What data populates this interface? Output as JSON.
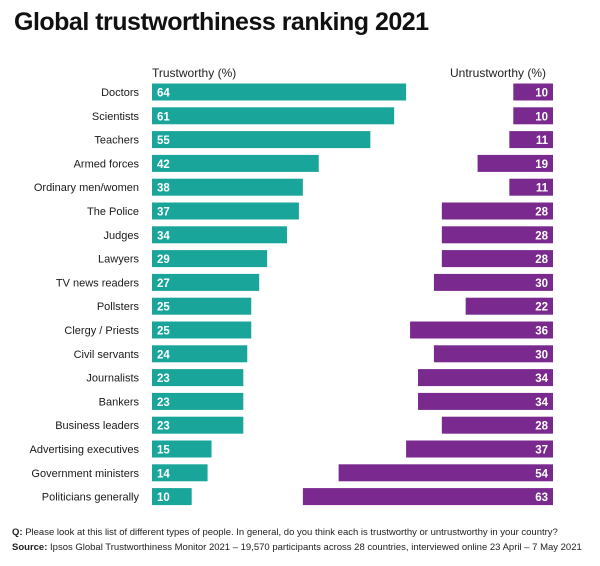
{
  "title": "Global trustworthiness ranking 2021",
  "headers": {
    "left": "Trustworthy (%)",
    "right": "Untrustworthy (%)"
  },
  "colors": {
    "trust": "#1aa59b",
    "untrust": "#7a2a8e"
  },
  "chart_data": {
    "type": "bar",
    "title": "Global trustworthiness ranking 2021",
    "categories": [
      "Doctors",
      "Scientists",
      "Teachers",
      "Armed forces",
      "Ordinary men/women",
      "The Police",
      "Judges",
      "Lawyers",
      "TV news readers",
      "Pollsters",
      "Clergy / Priests",
      "Civil servants",
      "Journalists",
      "Bankers",
      "Business leaders",
      "Advertising executives",
      "Government ministers",
      "Politicians generally"
    ],
    "series": [
      {
        "name": "Trustworthy (%)",
        "values": [
          64,
          61,
          55,
          42,
          38,
          37,
          34,
          29,
          27,
          25,
          25,
          24,
          23,
          23,
          23,
          15,
          14,
          10
        ]
      },
      {
        "name": "Untrustworthy (%)",
        "values": [
          10,
          10,
          11,
          19,
          11,
          28,
          28,
          28,
          30,
          22,
          36,
          30,
          34,
          34,
          28,
          37,
          54,
          63
        ]
      }
    ]
  },
  "footer": {
    "q_label": "Q:",
    "q_text": "Please look at this list of different types of people. In general, do you think each is trustworthy or untrustworthy in your country?",
    "source_label": "Source:",
    "source_text": "Ipsos Global Trustworthiness Monitor 2021 – 19,570 participants across 28 countries, interviewed online 23 April – 7 May 2021"
  }
}
